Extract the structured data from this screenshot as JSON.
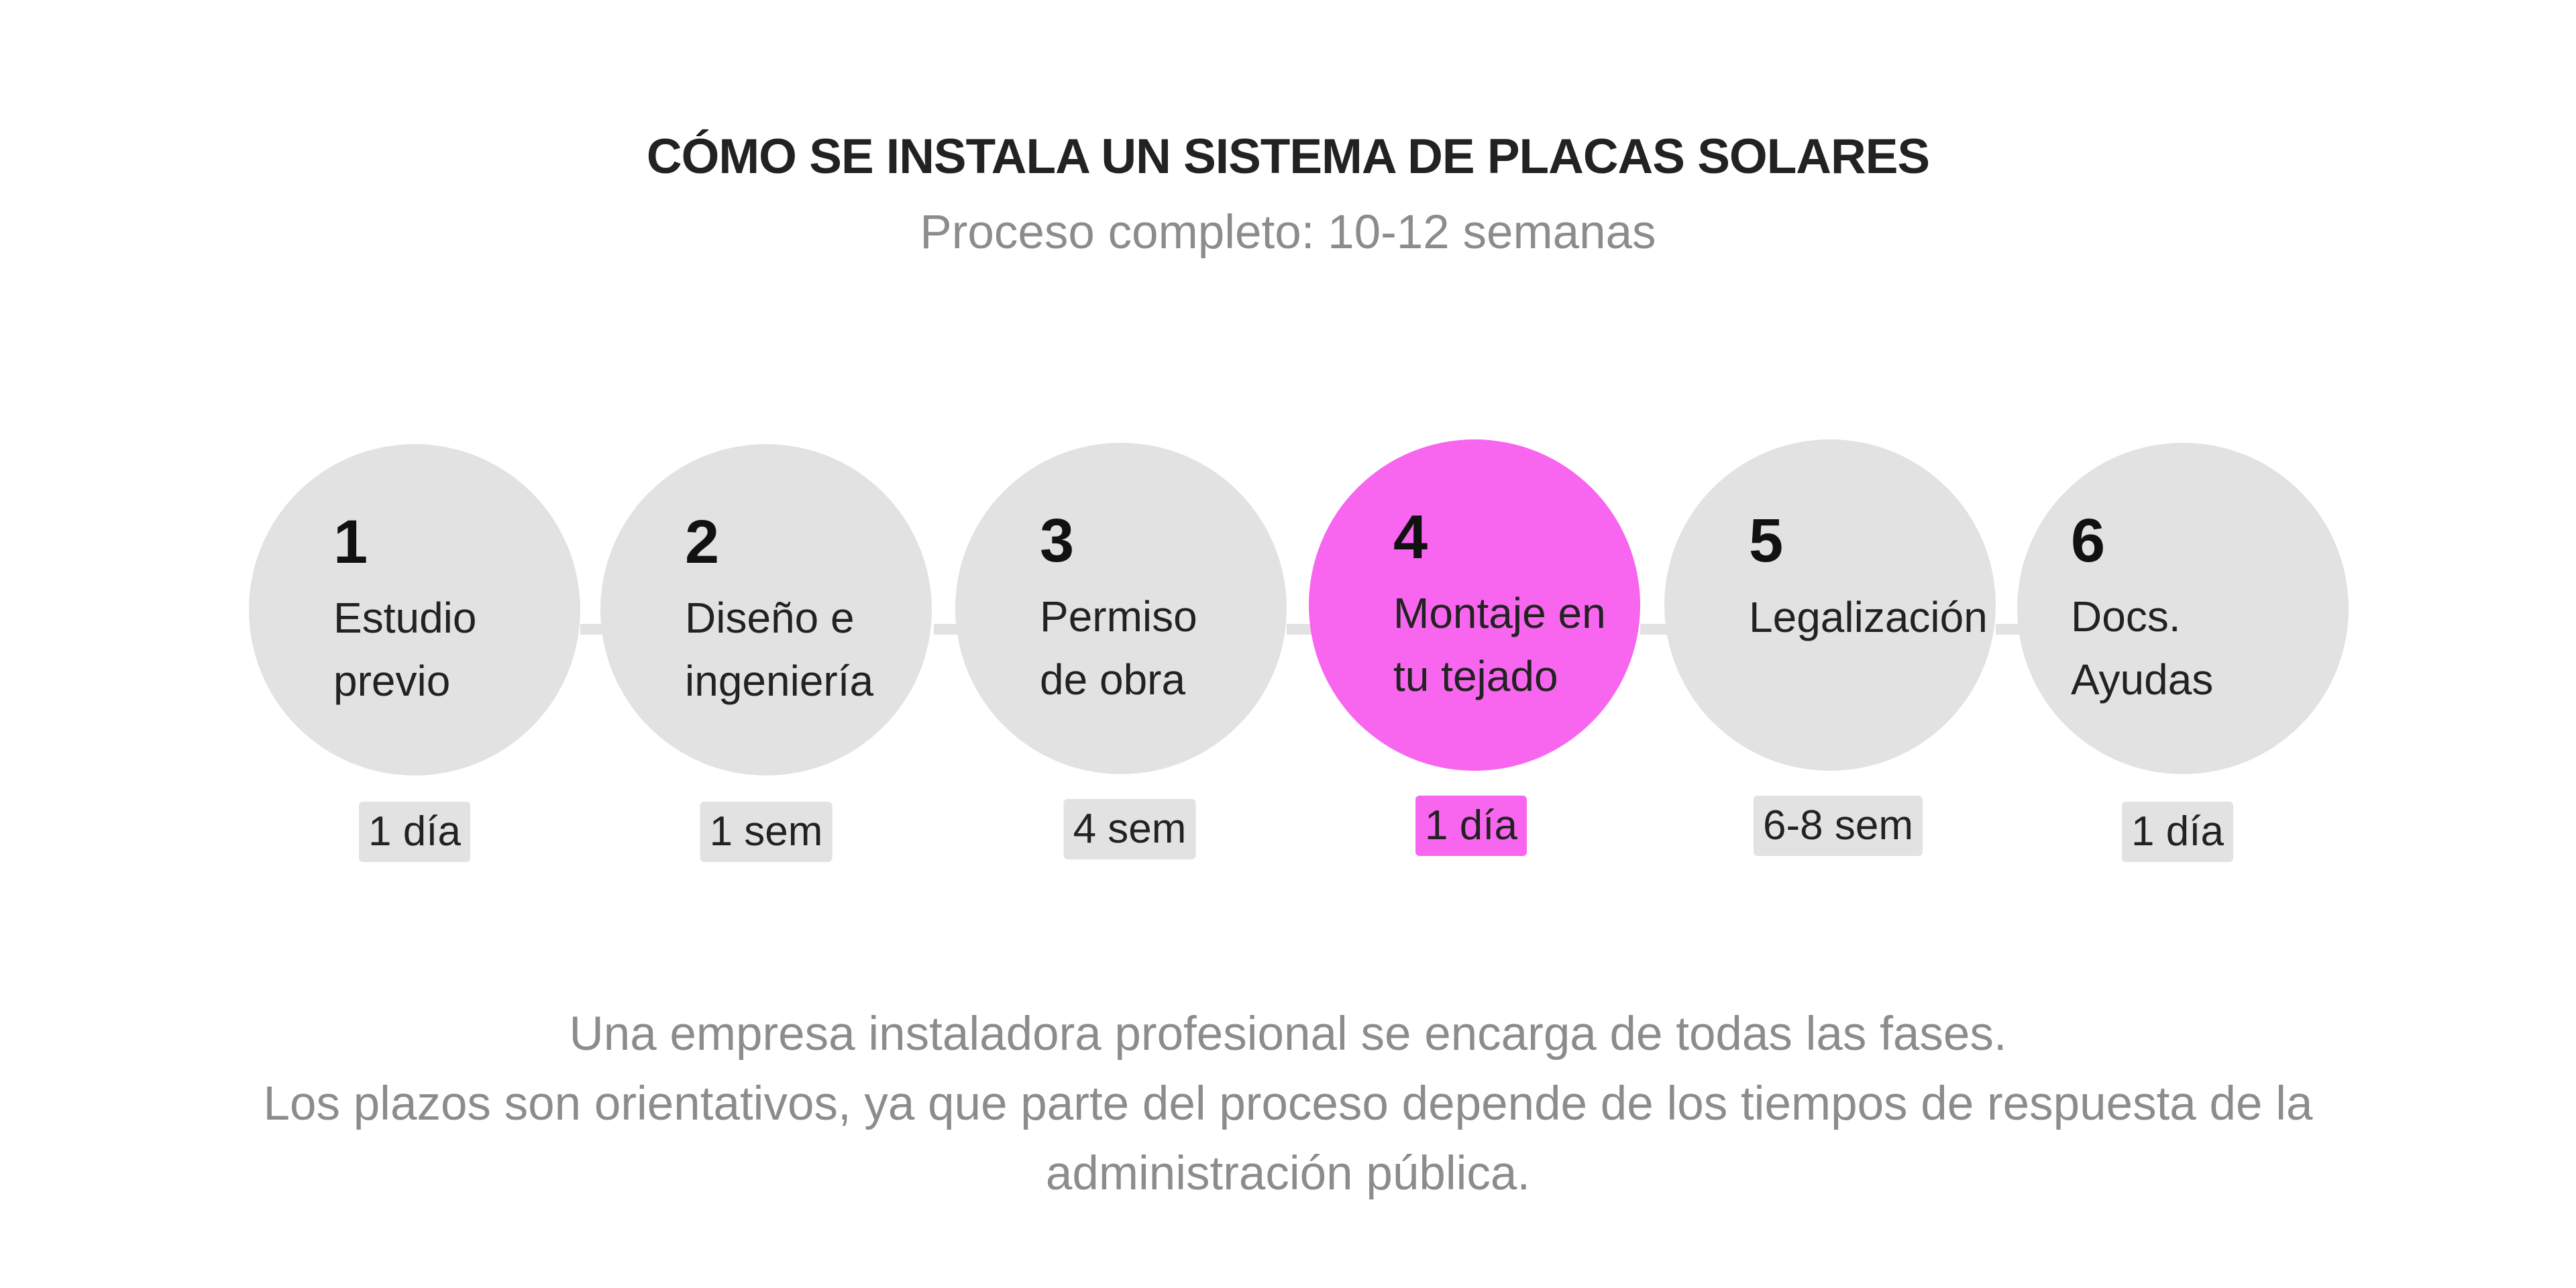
{
  "header": {
    "title": "CÓMO SE INSTALA UN SISTEMA DE PLACAS SOLARES",
    "subtitle": "Proceso completo: 10-12 semanas"
  },
  "colors": {
    "circle": "#e2e2e2",
    "highlight": "#f866ef",
    "title": "#222222",
    "muted": "#8c8c8c"
  },
  "steps": [
    {
      "number": "1",
      "label": "Estudio\nprevio",
      "duration": "1 día",
      "highlighted": false
    },
    {
      "number": "2",
      "label": "Diseño e\ningeniería",
      "duration": "1 sem",
      "highlighted": false
    },
    {
      "number": "3",
      "label": "Permiso\nde obra",
      "duration": "4 sem",
      "highlighted": false
    },
    {
      "number": "4",
      "label": "Montaje en\ntu tejado",
      "duration": "1 día",
      "highlighted": true
    },
    {
      "number": "5",
      "label": "Legalización",
      "duration": "6-8 sem",
      "highlighted": false
    },
    {
      "number": "6",
      "label": "Docs.\nAyudas",
      "duration": "1 día",
      "highlighted": false
    }
  ],
  "footnote": {
    "line1": "Una empresa instaladora profesional se encarga de todas las fases.",
    "line2": "Los plazos son orientativos, ya que parte del proceso depende de los tiempos de respuesta de la",
    "line3": "administración pública."
  }
}
